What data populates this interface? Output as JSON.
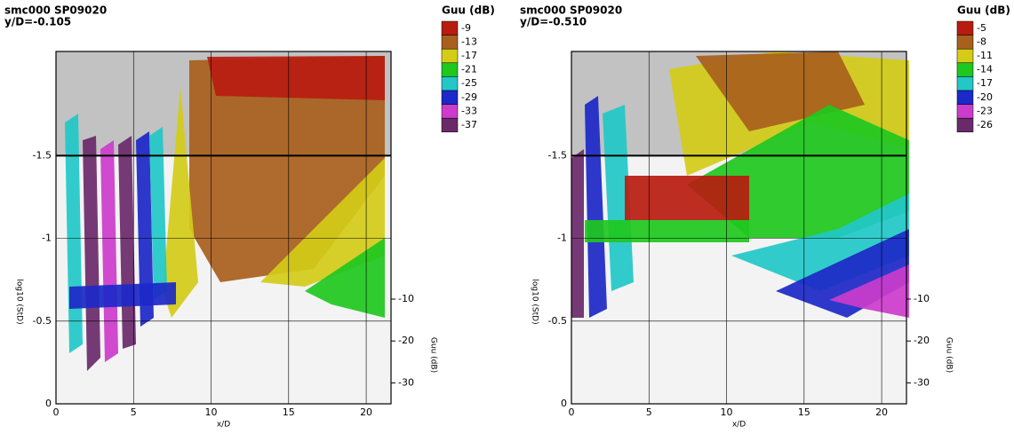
{
  "chart_data": [
    {
      "type": "surface",
      "title": "smc000   SP09020",
      "subtitle": "y/D=-0.105",
      "xlabel": "x/D",
      "ylabel": "log10 (StD)",
      "zlabel": "Guu (dB)",
      "xlim": [
        0,
        21.6
      ],
      "xticks": [
        0,
        5,
        10,
        15,
        20
      ],
      "ylim": [
        0,
        -2.13
      ],
      "yticks": [
        0,
        -0.5,
        -1,
        -1.5
      ],
      "zlim": [
        -35,
        -6.4
      ],
      "zticks": [
        -10,
        -20,
        -30
      ],
      "grid": true,
      "legend": {
        "title": "Guu (dB)",
        "levels": [
          -9,
          -13,
          -17,
          -21,
          -25,
          -29,
          -33,
          -37
        ],
        "colors": [
          "#b81c10",
          "#a8601c",
          "#d4cc18",
          "#1ec81e",
          "#22c8c8",
          "#1c28c8",
          "#cc3ccc",
          "#6a2a6a"
        ]
      }
    },
    {
      "type": "surface",
      "title": "smc000   SP09020",
      "subtitle": "y/D=-0.510",
      "xlabel": "x/D",
      "ylabel": "log10 (StD)",
      "zlabel": "Guu (dB)",
      "xlim": [
        0,
        21.6
      ],
      "xticks": [
        0,
        5,
        10,
        15,
        20
      ],
      "ylim": [
        0,
        -2.13
      ],
      "yticks": [
        0,
        -0.5,
        -1,
        -1.5
      ],
      "zlim": [
        -35,
        -6.4
      ],
      "zticks": [
        -10,
        -20,
        -30
      ],
      "grid": true,
      "legend": {
        "title": "Guu (dB)",
        "levels": [
          -5,
          -8,
          -11,
          -14,
          -17,
          -20,
          -23,
          -26
        ],
        "colors": [
          "#b81c10",
          "#a8601c",
          "#d4cc18",
          "#1ec81e",
          "#22c8c8",
          "#1c28c8",
          "#cc3ccc",
          "#6a2a6a"
        ]
      }
    }
  ]
}
